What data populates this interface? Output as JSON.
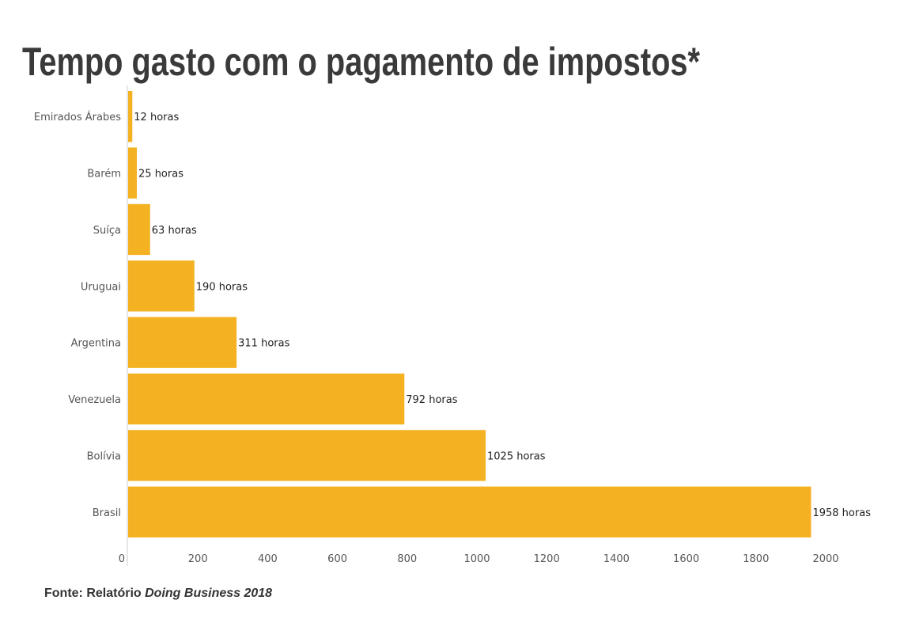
{
  "chart_data": {
    "type": "bar",
    "orientation": "horizontal",
    "title": "Tempo gasto com o pagamento de impostos*",
    "categories": [
      "Emirados Árabes",
      "Barém",
      "Suíça",
      "Uruguai",
      "Argentina",
      "Venezuela",
      "Bolívia",
      "Brasil"
    ],
    "values": [
      12,
      25,
      63,
      190,
      311,
      792,
      1025,
      1958
    ],
    "data_labels": [
      "12 horas",
      "25 horas",
      "63 horas",
      "190 horas",
      "311 horas",
      "792 horas",
      "1025 horas",
      "1958 horas"
    ],
    "xlim": [
      0,
      2000
    ],
    "xticks": [
      "0",
      "200",
      "400",
      "600",
      "800",
      "1000",
      "1200",
      "1400",
      "1600",
      "1800",
      "2000"
    ],
    "xlabel": "",
    "ylabel": "",
    "grid": false,
    "bar_color": "#F4B223",
    "source_prefix": "Fonte: Relatório",
    "source_italic": "Doing Business 2018"
  }
}
